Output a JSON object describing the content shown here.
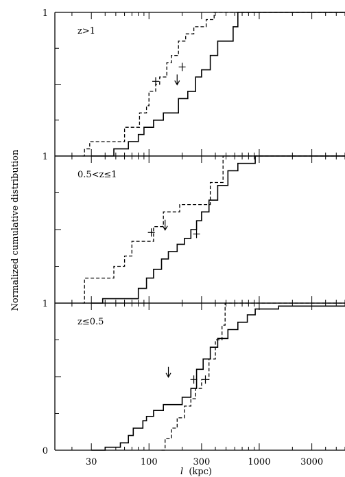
{
  "chart_data": {
    "type": "line",
    "ylabel": "Normalized cumulative distribution",
    "xlabel_symbol": "l",
    "xlabel_unit": "(kpc)",
    "x_scale": "log",
    "xlim": [
      14,
      6000
    ],
    "x_ticks": [
      30,
      100,
      300,
      1000,
      3000
    ],
    "x_tick_labels": [
      "30",
      "100",
      "300",
      "1000",
      "3000"
    ],
    "ylim": [
      0,
      1
    ],
    "y_tick_labels": [
      "1",
      "1",
      "1",
      "0"
    ],
    "grid": false,
    "panels": [
      {
        "label": "z>1",
        "series": [
          {
            "style": "solid",
            "points": [
              [
                30,
                0
              ],
              [
                48,
                0
              ],
              [
                48,
                0.05
              ],
              [
                65,
                0.05
              ],
              [
                65,
                0.1
              ],
              [
                80,
                0.1
              ],
              [
                80,
                0.15
              ],
              [
                90,
                0.15
              ],
              [
                90,
                0.2
              ],
              [
                110,
                0.2
              ],
              [
                110,
                0.25
              ],
              [
                135,
                0.25
              ],
              [
                135,
                0.3
              ],
              [
                185,
                0.3
              ],
              [
                185,
                0.4
              ],
              [
                225,
                0.4
              ],
              [
                225,
                0.45
              ],
              [
                265,
                0.45
              ],
              [
                265,
                0.55
              ],
              [
                300,
                0.55
              ],
              [
                300,
                0.6
              ],
              [
                360,
                0.6
              ],
              [
                360,
                0.7
              ],
              [
                420,
                0.7
              ],
              [
                420,
                0.8
              ],
              [
                580,
                0.8
              ],
              [
                580,
                0.9
              ],
              [
                640,
                0.9
              ],
              [
                640,
                1.0
              ],
              [
                6000,
                1.0
              ]
            ]
          },
          {
            "style": "dashed",
            "points": [
              [
                25,
                0
              ],
              [
                26,
                0
              ],
              [
                26,
                0.05
              ],
              [
                29,
                0.05
              ],
              [
                29,
                0.1
              ],
              [
                60,
                0.1
              ],
              [
                60,
                0.2
              ],
              [
                82,
                0.2
              ],
              [
                82,
                0.3
              ],
              [
                95,
                0.3
              ],
              [
                95,
                0.35
              ],
              [
                100,
                0.35
              ],
              [
                100,
                0.45
              ],
              [
                115,
                0.45
              ],
              [
                115,
                0.5
              ],
              [
                125,
                0.5
              ],
              [
                125,
                0.55
              ],
              [
                145,
                0.55
              ],
              [
                145,
                0.65
              ],
              [
                160,
                0.65
              ],
              [
                160,
                0.7
              ],
              [
                185,
                0.7
              ],
              [
                185,
                0.8
              ],
              [
                215,
                0.8
              ],
              [
                215,
                0.85
              ],
              [
                255,
                0.85
              ],
              [
                255,
                0.9
              ],
              [
                330,
                0.9
              ],
              [
                330,
                0.95
              ],
              [
                390,
                0.95
              ],
              [
                390,
                1.0
              ],
              [
                6000,
                1.0
              ]
            ]
          }
        ],
        "markers": [
          {
            "x": 115,
            "y": 0.52,
            "kind": "plus"
          },
          {
            "x": 200,
            "y": 0.62,
            "kind": "plus"
          }
        ],
        "arrow_x": 180
      },
      {
        "label": "0.5<z≤1",
        "series": [
          {
            "style": "solid",
            "points": [
              [
                30,
                0
              ],
              [
                38,
                0
              ],
              [
                38,
                0.03
              ],
              [
                80,
                0.03
              ],
              [
                80,
                0.1
              ],
              [
                95,
                0.1
              ],
              [
                95,
                0.17
              ],
              [
                110,
                0.17
              ],
              [
                110,
                0.23
              ],
              [
                130,
                0.23
              ],
              [
                130,
                0.3
              ],
              [
                150,
                0.3
              ],
              [
                150,
                0.35
              ],
              [
                180,
                0.35
              ],
              [
                180,
                0.4
              ],
              [
                210,
                0.4
              ],
              [
                210,
                0.44
              ],
              [
                240,
                0.44
              ],
              [
                240,
                0.5
              ],
              [
                270,
                0.5
              ],
              [
                270,
                0.56
              ],
              [
                300,
                0.56
              ],
              [
                300,
                0.62
              ],
              [
                350,
                0.62
              ],
              [
                350,
                0.7
              ],
              [
                420,
                0.7
              ],
              [
                420,
                0.8
              ],
              [
                520,
                0.8
              ],
              [
                520,
                0.9
              ],
              [
                640,
                0.9
              ],
              [
                640,
                0.95
              ],
              [
                920,
                0.95
              ],
              [
                920,
                1.0
              ],
              [
                6000,
                1.0
              ]
            ]
          },
          {
            "style": "dashed",
            "points": [
              [
                25,
                0
              ],
              [
                26,
                0
              ],
              [
                26,
                0.17
              ],
              [
                48,
                0.17
              ],
              [
                48,
                0.25
              ],
              [
                60,
                0.25
              ],
              [
                60,
                0.32
              ],
              [
                70,
                0.32
              ],
              [
                70,
                0.42
              ],
              [
                110,
                0.42
              ],
              [
                110,
                0.52
              ],
              [
                135,
                0.52
              ],
              [
                135,
                0.62
              ],
              [
                190,
                0.62
              ],
              [
                190,
                0.67
              ],
              [
                360,
                0.67
              ],
              [
                360,
                0.82
              ],
              [
                470,
                0.82
              ],
              [
                470,
                1.0
              ],
              [
                6000,
                1.0
              ]
            ]
          }
        ],
        "markers": [
          {
            "x": 105,
            "y": 0.48,
            "kind": "plus"
          },
          {
            "x": 270,
            "y": 0.47,
            "kind": "plus"
          }
        ],
        "arrow_x": 140
      },
      {
        "label": "z≤0.5",
        "series": [
          {
            "style": "solid",
            "points": [
              [
                30,
                0
              ],
              [
                40,
                0
              ],
              [
                40,
                0.02
              ],
              [
                55,
                0.02
              ],
              [
                55,
                0.05
              ],
              [
                65,
                0.05
              ],
              [
                65,
                0.1
              ],
              [
                72,
                0.1
              ],
              [
                72,
                0.15
              ],
              [
                88,
                0.15
              ],
              [
                88,
                0.2
              ],
              [
                95,
                0.2
              ],
              [
                95,
                0.23
              ],
              [
                110,
                0.23
              ],
              [
                110,
                0.27
              ],
              [
                135,
                0.27
              ],
              [
                135,
                0.31
              ],
              [
                200,
                0.31
              ],
              [
                200,
                0.36
              ],
              [
                240,
                0.36
              ],
              [
                240,
                0.42
              ],
              [
                270,
                0.42
              ],
              [
                270,
                0.55
              ],
              [
                310,
                0.55
              ],
              [
                310,
                0.62
              ],
              [
                360,
                0.62
              ],
              [
                360,
                0.7
              ],
              [
                420,
                0.7
              ],
              [
                420,
                0.76
              ],
              [
                520,
                0.76
              ],
              [
                520,
                0.82
              ],
              [
                640,
                0.82
              ],
              [
                640,
                0.87
              ],
              [
                780,
                0.87
              ],
              [
                780,
                0.92
              ],
              [
                920,
                0.92
              ],
              [
                920,
                0.96
              ],
              [
                1500,
                0.96
              ],
              [
                1500,
                0.98
              ],
              [
                6000,
                0.98
              ]
            ]
          },
          {
            "style": "dashed",
            "points": [
              [
                130,
                0
              ],
              [
                140,
                0
              ],
              [
                140,
                0.08
              ],
              [
                160,
                0.08
              ],
              [
                160,
                0.15
              ],
              [
                180,
                0.15
              ],
              [
                180,
                0.22
              ],
              [
                210,
                0.22
              ],
              [
                210,
                0.3
              ],
              [
                240,
                0.3
              ],
              [
                240,
                0.35
              ],
              [
                265,
                0.35
              ],
              [
                265,
                0.42
              ],
              [
                300,
                0.42
              ],
              [
                300,
                0.48
              ],
              [
                350,
                0.48
              ],
              [
                350,
                0.62
              ],
              [
                400,
                0.62
              ],
              [
                400,
                0.75
              ],
              [
                460,
                0.75
              ],
              [
                460,
                0.85
              ],
              [
                490,
                0.85
              ],
              [
                490,
                1.0
              ],
              [
                6000,
                1.0
              ]
            ]
          }
        ],
        "markers": [
          {
            "x": 255,
            "y": 0.48,
            "kind": "plus"
          },
          {
            "x": 325,
            "y": 0.48,
            "kind": "plus"
          }
        ],
        "arrow_x": 150
      }
    ]
  }
}
